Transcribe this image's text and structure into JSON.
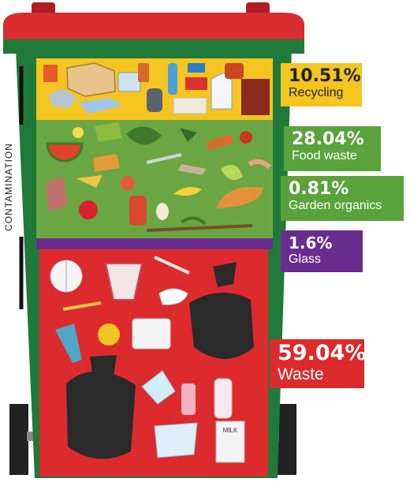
{
  "side_label": "CONTAMINATION",
  "categories": [
    {
      "id": "recycling",
      "percent": "10.51%",
      "label": "Recycling",
      "color": "#f4c51f",
      "text_color": "#222222"
    },
    {
      "id": "food-waste",
      "percent": "28.04%",
      "label": "Food waste",
      "color": "#59a33a",
      "text_color": "#ffffff"
    },
    {
      "id": "garden-organics",
      "percent": "0.81%",
      "label": "Garden organics",
      "color": "#59a33a",
      "text_color": "#ffffff"
    },
    {
      "id": "glass",
      "percent": "1.6%",
      "label": "Glass",
      "color": "#6a2c8f",
      "text_color": "#ffffff"
    },
    {
      "id": "waste",
      "percent": "59.04%",
      "label": "Waste",
      "color": "#dc2a2d",
      "text_color": "#ffffff"
    }
  ],
  "milk_carton_text": "MILK",
  "colors": {
    "lid": "#d92d2f",
    "bin_green": "#1f7a3a",
    "yellow_band": "#f4c51f",
    "green_band": "#6aa743",
    "purple_band": "#6a2c8f",
    "red_band": "#dc2a2d"
  }
}
